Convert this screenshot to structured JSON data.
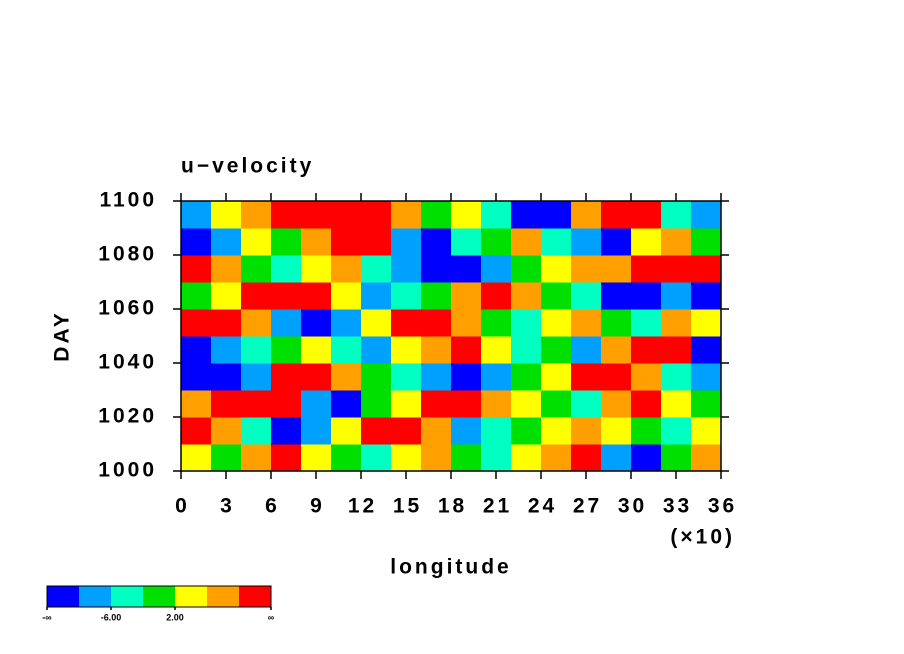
{
  "chart_data": {
    "type": "heatmap",
    "title": "u−velocity",
    "xlabel": "longitude",
    "ylabel": "DAY",
    "x_multiplier": "(×10)",
    "xbins": [
      0,
      2,
      4,
      6,
      8,
      10,
      12,
      14,
      16,
      18,
      20,
      22,
      24,
      26,
      28,
      30,
      32,
      34,
      36
    ],
    "ybins": [
      1000,
      1010,
      1020,
      1030,
      1040,
      1050,
      1060,
      1070,
      1080,
      1090,
      1100
    ],
    "values": [
      [
        4,
        0,
        8,
        12,
        4,
        0,
        -4,
        4,
        8,
        0,
        -4,
        4,
        8,
        12,
        -8,
        -12,
        0,
        8
      ],
      [
        12,
        8,
        -4,
        -12,
        -8,
        4,
        12,
        12,
        8,
        -8,
        -4,
        0,
        4,
        8,
        4,
        0,
        -4,
        4
      ],
      [
        8,
        12,
        12,
        12,
        -8,
        -12,
        0,
        4,
        12,
        12,
        8,
        4,
        0,
        -4,
        8,
        12,
        4,
        0
      ],
      [
        -12,
        -12,
        -8,
        12,
        12,
        8,
        0,
        -4,
        -8,
        -12,
        -8,
        0,
        4,
        12,
        12,
        8,
        -4,
        -8
      ],
      [
        -12,
        -8,
        -4,
        0,
        4,
        -4,
        -8,
        4,
        8,
        12,
        4,
        -4,
        0,
        -8,
        8,
        12,
        12,
        -12
      ],
      [
        12,
        12,
        8,
        -8,
        -12,
        -8,
        4,
        12,
        12,
        8,
        0,
        -4,
        4,
        8,
        0,
        -4,
        8,
        4
      ],
      [
        0,
        4,
        12,
        12,
        12,
        4,
        -8,
        -4,
        0,
        8,
        12,
        8,
        0,
        -4,
        -12,
        -12,
        -8,
        -12
      ],
      [
        12,
        8,
        0,
        -4,
        4,
        8,
        -4,
        -8,
        -12,
        -12,
        -8,
        0,
        4,
        8,
        8,
        12,
        12,
        12
      ],
      [
        -12,
        -8,
        4,
        0,
        8,
        12,
        12,
        -8,
        -12,
        -4,
        0,
        8,
        -4,
        -8,
        -12,
        4,
        8,
        0
      ],
      [
        -8,
        4,
        8,
        12,
        12,
        12,
        12,
        8,
        0,
        4,
        -4,
        -12,
        -12,
        8,
        12,
        12,
        -4,
        -8
      ]
    ],
    "xlim": [
      0,
      36
    ],
    "ylim": [
      1000,
      1100
    ],
    "xticks": [
      0,
      3,
      6,
      9,
      12,
      15,
      18,
      21,
      24,
      27,
      30,
      33,
      36
    ],
    "yticks": [
      1000,
      1020,
      1040,
      1060,
      1080,
      1100
    ],
    "levels": [
      -10,
      -6,
      -2,
      2,
      6,
      10
    ],
    "colors": [
      "#0000ff",
      "#00a0ff",
      "#00ffc0",
      "#00e000",
      "#ffff00",
      "#ffa000",
      "#ff0000"
    ],
    "colorbar": {
      "ticks": [
        {
          "value": null,
          "label": "-∞"
        },
        {
          "value": -6,
          "label": "-6.00"
        },
        {
          "value": 2,
          "label": "2.00"
        },
        {
          "value": null,
          "label": "∞"
        }
      ]
    }
  }
}
